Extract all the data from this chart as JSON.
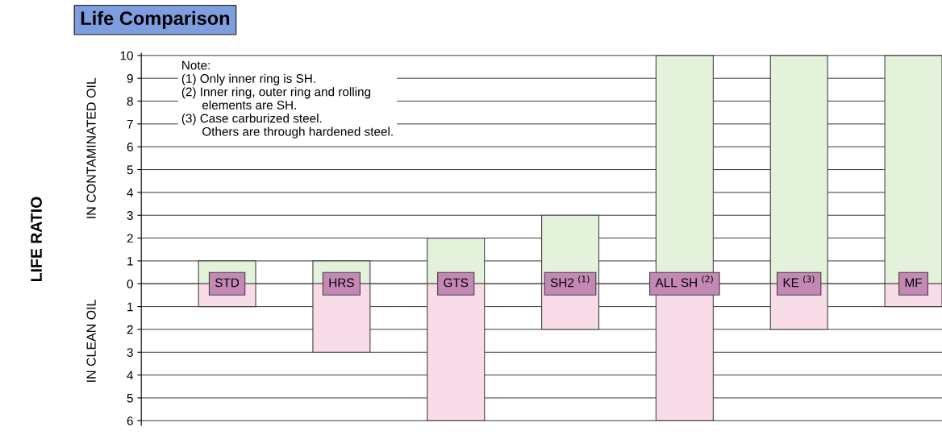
{
  "chart_data": {
    "type": "bar",
    "title": "Life Comparison",
    "stacked": true,
    "categories": [
      "STD",
      "HRS",
      "GTS",
      "SH2 $^{(1)}$",
      "ALL SH $^{(2)}$",
      "KE $^{(3)}$",
      "MF"
    ],
    "series": [
      {
        "color": "#e4f2dc",
        "values": [
          1,
          1,
          2,
          3,
          10,
          10,
          10
        ]
      },
      {
        "color": "#f8dce8",
        "values": [
          -1,
          -3,
          -6,
          -2,
          -6,
          -2,
          -1
        ]
      }
    ],
    "ylim": [
      -6.2,
      10.1
    ],
    "yticks": [
      {
        "value": -6,
        "label": "6"
      },
      {
        "value": -5,
        "label": "5"
      },
      {
        "value": -4,
        "label": "4"
      },
      {
        "value": -3,
        "label": "3"
      },
      {
        "value": -2,
        "label": "2"
      },
      {
        "value": -1,
        "label": "1"
      },
      0,
      1,
      2,
      3,
      4,
      5,
      6,
      7,
      8,
      9,
      10
    ],
    "grid": "y",
    "annotations": [
      "LIFE RATIO",
      "IN CONTAMINATED OIL",
      "IN CLEAN OIL",
      "Note:\n(1) Only inner ring is SH.\n(2) Inner ring, outer ring and rolling\n      elements are SH.\n(3) Case carburized steel.\n      Others are through hardened steel."
    ]
  }
}
